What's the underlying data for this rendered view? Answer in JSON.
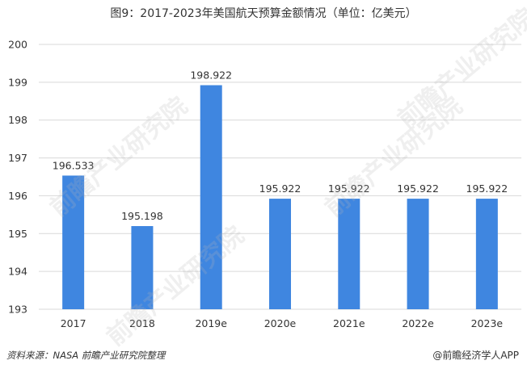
{
  "title": "图9：2017-2023年美国航天预算金额情况（单位：亿美元）",
  "footer": {
    "source": "资料来源：NASA 前瞻产业研究院整理",
    "brand": "@前瞻经济学人APP"
  },
  "watermark": "前瞻产业研究院",
  "colors": {
    "bar": "#3f86e0",
    "grid": "#d9d9d9",
    "text": "#333333"
  },
  "chart_data": {
    "type": "bar",
    "title": "图9：2017-2023年美国航天预算金额情况（单位：亿美元）",
    "categories": [
      "2017",
      "2018",
      "2019e",
      "2020e",
      "2021e",
      "2022e",
      "2023e"
    ],
    "values": [
      196.533,
      195.198,
      198.922,
      195.922,
      195.922,
      195.922,
      195.922
    ],
    "value_labels": [
      "196.533",
      "195.198",
      "198.922",
      "195.922",
      "195.922",
      "195.922",
      "195.922"
    ],
    "ylim": [
      193,
      200
    ],
    "yticks": [
      "193",
      "194",
      "195",
      "196",
      "197",
      "198",
      "199",
      "200"
    ],
    "xlabel": "",
    "ylabel": "",
    "grid": true,
    "legend": "none"
  }
}
